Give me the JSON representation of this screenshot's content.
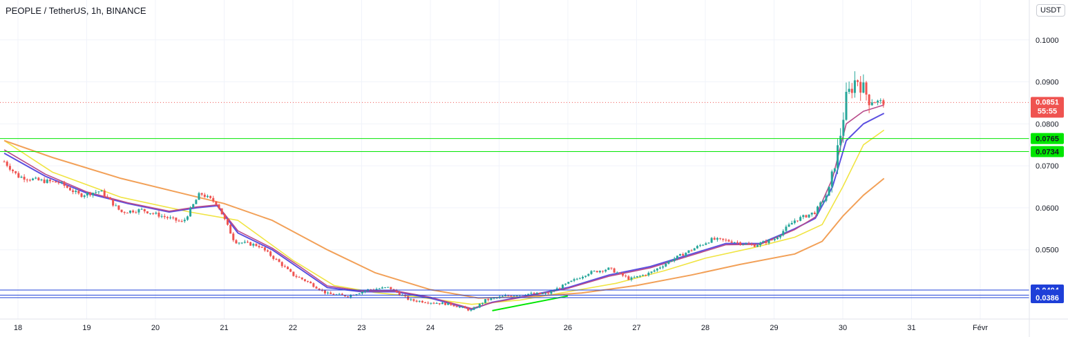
{
  "header": {
    "symbol": "PEOPLE / TetherUS, 1h, BINANCE",
    "currency": "USDT"
  },
  "colors": {
    "up": "#26a69a",
    "down": "#ef5350",
    "ema_fast": "#5b4fe0",
    "ema_mid": "#b84a8a",
    "ema_yellow": "#f0e442",
    "ema_orange": "#f2a057",
    "green_level": "#00e600",
    "blue_level": "#1e3fd8",
    "last_price": "#ef5350",
    "trendline": "#00e600"
  },
  "chart_data": {
    "type": "candlestick",
    "ylim": [
      0.0335,
      0.1095
    ],
    "y_ticks": [
      "0.1000",
      "0.0900",
      "0.0800",
      "0.0700",
      "0.0600",
      "0.0500"
    ],
    "x_ticks": [
      "18",
      "19",
      "20",
      "21",
      "22",
      "23",
      "24",
      "25",
      "26",
      "27",
      "28",
      "29",
      "30",
      "31",
      "Févr"
    ],
    "last_price": {
      "value": "0.0851",
      "countdown": "55:55"
    },
    "green_levels": [
      {
        "value": 0.0765,
        "label": "0.0765"
      },
      {
        "value": 0.0734,
        "label": "0.0734"
      }
    ],
    "blue_levels": [
      {
        "value": 0.0404,
        "label": "0.0404"
      },
      {
        "value": 0.0392,
        "label": "0.0392"
      },
      {
        "value": 0.0386,
        "label": "0.0386"
      }
    ],
    "trendline": {
      "from": [
        24.9,
        0.0355
      ],
      "to": [
        26.0,
        0.039
      ]
    },
    "price_path": [
      [
        17.8,
        0.071
      ],
      [
        18.0,
        0.0675
      ],
      [
        18.3,
        0.0665
      ],
      [
        18.6,
        0.066
      ],
      [
        18.9,
        0.063
      ],
      [
        19.2,
        0.064
      ],
      [
        19.5,
        0.059
      ],
      [
        19.8,
        0.0595
      ],
      [
        20.1,
        0.058
      ],
      [
        20.4,
        0.0565
      ],
      [
        20.65,
        0.0635
      ],
      [
        20.9,
        0.061
      ],
      [
        21.15,
        0.052
      ],
      [
        21.5,
        0.051
      ],
      [
        21.8,
        0.047
      ],
      [
        22.0,
        0.044
      ],
      [
        22.2,
        0.0425
      ],
      [
        22.5,
        0.0395
      ],
      [
        22.8,
        0.039
      ],
      [
        23.1,
        0.0405
      ],
      [
        23.4,
        0.041
      ],
      [
        23.7,
        0.038
      ],
      [
        24.0,
        0.0375
      ],
      [
        24.3,
        0.037
      ],
      [
        24.6,
        0.0355
      ],
      [
        24.8,
        0.038
      ],
      [
        25.1,
        0.039
      ],
      [
        25.4,
        0.0395
      ],
      [
        25.7,
        0.0395
      ],
      [
        26.0,
        0.042
      ],
      [
        26.3,
        0.0445
      ],
      [
        26.6,
        0.0455
      ],
      [
        26.9,
        0.043
      ],
      [
        27.2,
        0.0445
      ],
      [
        27.5,
        0.0475
      ],
      [
        27.8,
        0.05
      ],
      [
        28.1,
        0.0525
      ],
      [
        28.4,
        0.052
      ],
      [
        28.7,
        0.051
      ],
      [
        29.0,
        0.0525
      ],
      [
        29.3,
        0.057
      ],
      [
        29.6,
        0.059
      ],
      [
        29.8,
        0.064
      ],
      [
        29.95,
        0.076
      ],
      [
        30.05,
        0.086
      ],
      [
        30.2,
        0.091
      ],
      [
        30.4,
        0.0855
      ],
      [
        30.6,
        0.0851
      ]
    ],
    "emas": [
      {
        "key": "ema_yellow",
        "points": [
          [
            17.8,
            0.076
          ],
          [
            18.5,
            0.0685
          ],
          [
            19.5,
            0.0625
          ],
          [
            20.5,
            0.059
          ],
          [
            21.2,
            0.057
          ],
          [
            22.0,
            0.0475
          ],
          [
            22.6,
            0.0415
          ],
          [
            23.2,
            0.0398
          ],
          [
            23.8,
            0.0388
          ],
          [
            24.6,
            0.037
          ],
          [
            25.3,
            0.038
          ],
          [
            26.0,
            0.04
          ],
          [
            26.7,
            0.042
          ],
          [
            27.4,
            0.045
          ],
          [
            28.0,
            0.048
          ],
          [
            28.7,
            0.0505
          ],
          [
            29.3,
            0.053
          ],
          [
            29.7,
            0.056
          ],
          [
            30.0,
            0.065
          ],
          [
            30.3,
            0.075
          ],
          [
            30.6,
            0.0785
          ]
        ]
      },
      {
        "key": "ema_orange",
        "points": [
          [
            17.8,
            0.076
          ],
          [
            18.5,
            0.072
          ],
          [
            19.5,
            0.067
          ],
          [
            20.5,
            0.063
          ],
          [
            21.0,
            0.061
          ],
          [
            21.7,
            0.057
          ],
          [
            22.5,
            0.05
          ],
          [
            23.2,
            0.0445
          ],
          [
            24.0,
            0.0405
          ],
          [
            24.7,
            0.0385
          ],
          [
            25.4,
            0.0388
          ],
          [
            26.2,
            0.0397
          ],
          [
            27.0,
            0.0415
          ],
          [
            27.8,
            0.044
          ],
          [
            28.5,
            0.0465
          ],
          [
            29.3,
            0.049
          ],
          [
            29.7,
            0.052
          ],
          [
            30.0,
            0.058
          ],
          [
            30.3,
            0.063
          ],
          [
            30.6,
            0.067
          ]
        ]
      },
      {
        "key": "ema_fast",
        "points": [
          [
            17.8,
            0.073
          ],
          [
            18.4,
            0.0675
          ],
          [
            19.0,
            0.0635
          ],
          [
            19.6,
            0.061
          ],
          [
            20.2,
            0.059
          ],
          [
            20.6,
            0.06
          ],
          [
            20.9,
            0.0605
          ],
          [
            21.2,
            0.054
          ],
          [
            21.7,
            0.05
          ],
          [
            22.1,
            0.0455
          ],
          [
            22.5,
            0.041
          ],
          [
            23.0,
            0.04
          ],
          [
            23.5,
            0.04
          ],
          [
            24.0,
            0.0385
          ],
          [
            24.6,
            0.0358
          ],
          [
            24.9,
            0.0375
          ],
          [
            25.4,
            0.039
          ],
          [
            26.0,
            0.041
          ],
          [
            26.6,
            0.044
          ],
          [
            27.2,
            0.046
          ],
          [
            27.8,
            0.049
          ],
          [
            28.3,
            0.0515
          ],
          [
            28.8,
            0.0515
          ],
          [
            29.3,
            0.055
          ],
          [
            29.6,
            0.0575
          ],
          [
            29.85,
            0.065
          ],
          [
            30.05,
            0.076
          ],
          [
            30.3,
            0.08
          ],
          [
            30.6,
            0.0825
          ]
        ]
      },
      {
        "key": "ema_mid",
        "points": [
          [
            17.8,
            0.0738
          ],
          [
            18.4,
            0.068
          ],
          [
            19.0,
            0.0638
          ],
          [
            19.6,
            0.0612
          ],
          [
            20.2,
            0.0592
          ],
          [
            20.6,
            0.0602
          ],
          [
            20.9,
            0.0607
          ],
          [
            21.2,
            0.0545
          ],
          [
            21.7,
            0.0504
          ],
          [
            22.1,
            0.046
          ],
          [
            22.5,
            0.0414
          ],
          [
            23.0,
            0.0402
          ],
          [
            23.5,
            0.0402
          ],
          [
            24.0,
            0.0387
          ],
          [
            24.6,
            0.036
          ],
          [
            24.9,
            0.0374
          ],
          [
            25.4,
            0.0389
          ],
          [
            26.0,
            0.0408
          ],
          [
            26.6,
            0.0437
          ],
          [
            27.2,
            0.0457
          ],
          [
            27.8,
            0.0487
          ],
          [
            28.3,
            0.0512
          ],
          [
            28.8,
            0.0513
          ],
          [
            29.3,
            0.0548
          ],
          [
            29.6,
            0.0578
          ],
          [
            29.85,
            0.067
          ],
          [
            30.05,
            0.08
          ],
          [
            30.3,
            0.083
          ],
          [
            30.6,
            0.0845
          ]
        ]
      }
    ]
  }
}
